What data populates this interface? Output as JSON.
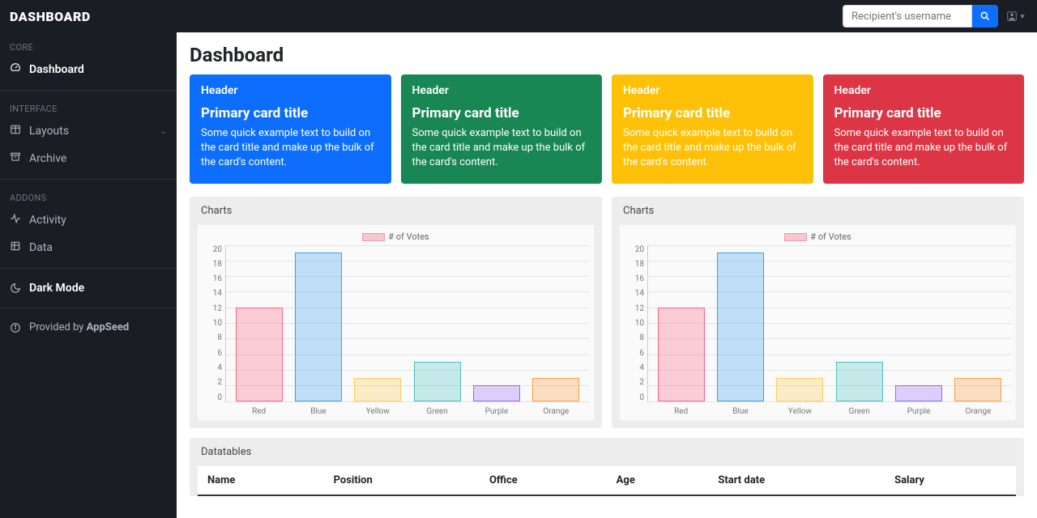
{
  "brand": "DASHBOARD",
  "search": {
    "placeholder": "Recipient's username"
  },
  "sidebar": {
    "sections": [
      {
        "label": "CORE",
        "items": [
          {
            "icon": "tachometer",
            "label": "Dashboard",
            "active": true
          }
        ]
      },
      {
        "label": "INTERFACE",
        "items": [
          {
            "icon": "columns",
            "label": "Layouts",
            "chevron": true
          },
          {
            "icon": "archive",
            "label": "Archive"
          }
        ]
      },
      {
        "label": "ADDONS",
        "items": [
          {
            "icon": "activity",
            "label": "Activity"
          },
          {
            "icon": "data",
            "label": "Data"
          }
        ]
      }
    ],
    "dark_mode": {
      "label": "Dark Mode"
    },
    "footer": {
      "prefix": "Provided by ",
      "brand": "AppSeed"
    }
  },
  "page_title": "Dashboard",
  "cards": [
    {
      "bg": "#0d6efd",
      "header": "Header",
      "title": "Primary card title",
      "text": "Some quick example text to build on the card title and make up the bulk of the card's content."
    },
    {
      "bg": "#198754",
      "header": "Header",
      "title": "Primary card title",
      "text": "Some quick example text to build on the card title and make up the bulk of the card's content."
    },
    {
      "bg": "#ffc107",
      "header": "Header",
      "title": "Primary card title",
      "text": "Some quick example text to build on the card title and make up the bulk of the card's content."
    },
    {
      "bg": "#dc3545",
      "header": "Header",
      "title": "Primary card title",
      "text": "Some quick example text to build on the card title and make up the bulk of the card's content."
    }
  ],
  "chart": {
    "panel_title": "Charts",
    "legend_label": "# of Votes",
    "type": "bar",
    "categories": [
      "Red",
      "Blue",
      "Yellow",
      "Green",
      "Purple",
      "Orange"
    ],
    "values": [
      12,
      19,
      3,
      5,
      2,
      3
    ],
    "bar_fill": [
      "rgba(255,99,132,0.3)",
      "rgba(54,162,235,0.3)",
      "rgba(255,206,86,0.3)",
      "rgba(75,192,192,0.3)",
      "rgba(153,102,255,0.3)",
      "rgba(255,159,64,0.3)"
    ],
    "bar_border": [
      "#ff6384",
      "#36a2eb",
      "#ffce56",
      "#4bc0c0",
      "#9966ff",
      "#ff9f40"
    ],
    "ylim": [
      0,
      20
    ],
    "ytick_step": 2,
    "grid_color": "#e3e3e3",
    "background": "#fafafa",
    "label_fontsize": 10,
    "label_color": "#777"
  },
  "table": {
    "panel_title": "Datatables",
    "columns": [
      "Name",
      "Position",
      "Office",
      "Age",
      "Start date",
      "Salary"
    ]
  }
}
